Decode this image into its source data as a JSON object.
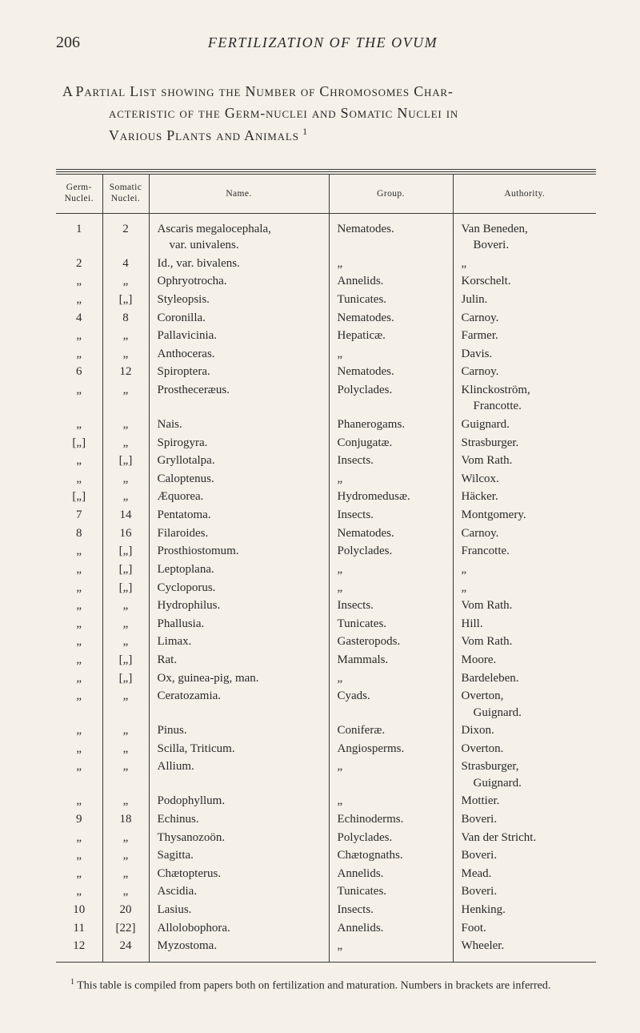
{
  "header": {
    "page_number": "206",
    "running_title": "FERTILIZATION OF THE OVUM"
  },
  "title": {
    "line1_a": "A ",
    "line1_b": "Partial List showing the Number of Chromosomes Char-",
    "line2_a": "acteristic of the Germ-nuclei and Somatic Nuclei in",
    "line3_a": "Various Plants and Animals",
    "super": "1"
  },
  "table": {
    "headers": [
      "Germ-\nNuclei.",
      "Somatic\nNuclei.",
      "Name.",
      "Group.",
      "Authority."
    ],
    "rows": [
      [
        "1",
        "2",
        "Ascaris megalocephala,\n    var. univalens.",
        "Nematodes.",
        "Van Beneden,\n    Boveri."
      ],
      [
        "2",
        "4",
        "Id., var. bivalens.",
        "„",
        "„"
      ],
      [
        "„",
        "„",
        "Ophryotrocha.",
        "Annelids.",
        "Korschelt."
      ],
      [
        "„",
        "[„]",
        "Styleopsis.",
        "Tunicates.",
        "Julin."
      ],
      [
        "4",
        "8",
        "Coronilla.",
        "Nematodes.",
        "Carnoy."
      ],
      [
        "„",
        "„",
        "Pallavicinia.",
        "Hepaticæ.",
        "Farmer."
      ],
      [
        "„",
        "„",
        "Anthoceras.",
        "„",
        "Davis."
      ],
      [
        "6",
        "12",
        "Spiroptera.",
        "Nematodes.",
        "Carnoy."
      ],
      [
        "„",
        "„",
        "Prostheceræus.",
        "Polyclades.",
        "Klinckoström,\n    Francotte."
      ],
      [
        "„",
        "„",
        "Nais.",
        "Phanerogams.",
        "Guignard."
      ],
      [
        "[„]",
        "„",
        "Spirogyra.",
        "Conjugatæ.",
        "Strasburger."
      ],
      [
        "„",
        "[„]",
        "Gryllotalpa.",
        "Insects.",
        "Vom Rath."
      ],
      [
        "„",
        "„",
        "Caloptenus.",
        "„",
        "Wilcox."
      ],
      [
        "[„]",
        "„",
        "Æquorea.",
        "Hydromedusæ.",
        "Häcker."
      ],
      [
        "7",
        "14",
        "Pentatoma.",
        "Insects.",
        "Montgomery."
      ],
      [
        "8",
        "16",
        "Filaroides.",
        "Nematodes.",
        "Carnoy."
      ],
      [
        "„",
        "[„]",
        "Prosthiostomum.",
        "Polyclades.",
        "Francotte."
      ],
      [
        "„",
        "[„]",
        "Leptoplana.",
        "„",
        "„"
      ],
      [
        "„",
        "[„]",
        "Cycloporus.",
        "„",
        "„"
      ],
      [
        "„",
        "„",
        "Hydrophilus.",
        "Insects.",
        "Vom Rath."
      ],
      [
        "„",
        "„",
        "Phallusia.",
        "Tunicates.",
        "Hill."
      ],
      [
        "„",
        "„",
        "Limax.",
        "Gasteropods.",
        "Vom Rath."
      ],
      [
        "„",
        "[„]",
        "Rat.",
        "Mammals.",
        "Moore."
      ],
      [
        "„",
        "[„]",
        "Ox, guinea-pig, man.",
        "„",
        "Bardeleben."
      ],
      [
        "„",
        "„",
        "Ceratozamia.",
        "Cyads.",
        "Overton,\n    Guignard."
      ],
      [
        "„",
        "„",
        "Pinus.",
        "Coniferæ.",
        "Dixon."
      ],
      [
        "„",
        "„",
        "Scilla, Triticum.",
        "Angiosperms.",
        "Overton."
      ],
      [
        "„",
        "„",
        "Allium.",
        "„",
        "Strasburger,\n    Guignard."
      ],
      [
        "„",
        "„",
        "Podophyllum.",
        "„",
        "Mottier."
      ],
      [
        "9",
        "18",
        "Echinus.",
        "Echinoderms.",
        "Boveri."
      ],
      [
        "„",
        "„",
        "Thysanozoön.",
        "Polyclades.",
        "Van der Stricht."
      ],
      [
        "„",
        "„",
        "Sagitta.",
        "Chætognaths.",
        "Boveri."
      ],
      [
        "„",
        "„",
        "Chætopterus.",
        "Annelids.",
        "Mead."
      ],
      [
        "„",
        "„",
        "Ascidia.",
        "Tunicates.",
        "Boveri."
      ],
      [
        "10",
        "20",
        "Lasius.",
        "Insects.",
        "Henking."
      ],
      [
        "11",
        "[22]",
        "Allolobophora.",
        "Annelids.",
        "Foot."
      ],
      [
        "12",
        "24",
        "Myzostoma.",
        "„",
        "Wheeler."
      ]
    ]
  },
  "footnote": {
    "marker": "1",
    "text": " This table is compiled from papers both on fertilization and maturation.  Numbers in brackets are inferred."
  }
}
